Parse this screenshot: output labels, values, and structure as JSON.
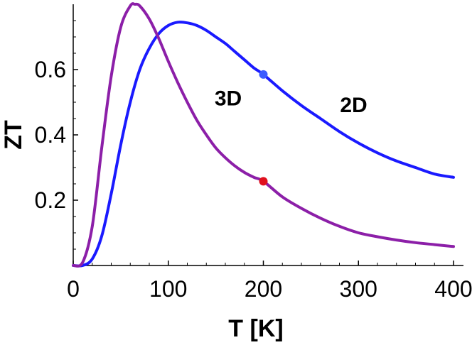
{
  "chart_data": {
    "type": "line",
    "title": "",
    "xlabel": "T [K]",
    "ylabel": "ZT",
    "xlim": [
      0,
      405
    ],
    "ylim": [
      0,
      0.8
    ],
    "xticks": [
      0,
      100,
      200,
      300,
      400
    ],
    "xtick_labels": [
      "0",
      "100",
      "200",
      "300",
      "400"
    ],
    "yticks": [
      0.2,
      0.4,
      0.6
    ],
    "ytick_labels": [
      "0.2",
      "0.4",
      "0.6"
    ],
    "grid": false,
    "series": [
      {
        "name": "2D",
        "color": "#1a1aff",
        "points": [
          [
            0,
            0
          ],
          [
            10,
            0.0
          ],
          [
            20,
            0.02
          ],
          [
            30,
            0.09
          ],
          [
            40,
            0.22
          ],
          [
            50,
            0.37
          ],
          [
            60,
            0.5
          ],
          [
            70,
            0.6
          ],
          [
            80,
            0.665
          ],
          [
            90,
            0.71
          ],
          [
            100,
            0.735
          ],
          [
            110,
            0.745
          ],
          [
            120,
            0.743
          ],
          [
            130,
            0.735
          ],
          [
            140,
            0.72
          ],
          [
            150,
            0.7
          ],
          [
            160,
            0.68
          ],
          [
            170,
            0.655
          ],
          [
            180,
            0.63
          ],
          [
            190,
            0.605
          ],
          [
            200,
            0.585
          ],
          [
            220,
            0.535
          ],
          [
            240,
            0.49
          ],
          [
            260,
            0.45
          ],
          [
            280,
            0.41
          ],
          [
            300,
            0.375
          ],
          [
            320,
            0.345
          ],
          [
            340,
            0.32
          ],
          [
            360,
            0.3
          ],
          [
            380,
            0.28
          ],
          [
            400,
            0.27
          ]
        ],
        "marker": {
          "x": 200,
          "y": 0.585,
          "color": "#3b5bff"
        }
      },
      {
        "name": "3D",
        "color": "#8c1fa8",
        "points": [
          [
            0,
            0
          ],
          [
            10,
            0.01
          ],
          [
            20,
            0.12
          ],
          [
            30,
            0.36
          ],
          [
            40,
            0.58
          ],
          [
            50,
            0.73
          ],
          [
            60,
            0.795
          ],
          [
            65,
            0.8
          ],
          [
            70,
            0.795
          ],
          [
            80,
            0.755
          ],
          [
            90,
            0.695
          ],
          [
            100,
            0.625
          ],
          [
            110,
            0.56
          ],
          [
            120,
            0.5
          ],
          [
            130,
            0.445
          ],
          [
            140,
            0.4
          ],
          [
            150,
            0.36
          ],
          [
            160,
            0.33
          ],
          [
            170,
            0.305
          ],
          [
            180,
            0.285
          ],
          [
            190,
            0.27
          ],
          [
            200,
            0.258
          ],
          [
            220,
            0.21
          ],
          [
            240,
            0.175
          ],
          [
            260,
            0.145
          ],
          [
            280,
            0.12
          ],
          [
            300,
            0.1
          ],
          [
            320,
            0.088
          ],
          [
            340,
            0.078
          ],
          [
            360,
            0.07
          ],
          [
            380,
            0.064
          ],
          [
            400,
            0.058
          ]
        ],
        "marker": {
          "x": 200,
          "y": 0.258,
          "color": "#e0101e"
        }
      }
    ],
    "annotations": [
      {
        "text": "3D",
        "x": 163,
        "y": 0.49
      },
      {
        "text": "2D",
        "x": 295,
        "y": 0.47
      }
    ]
  }
}
